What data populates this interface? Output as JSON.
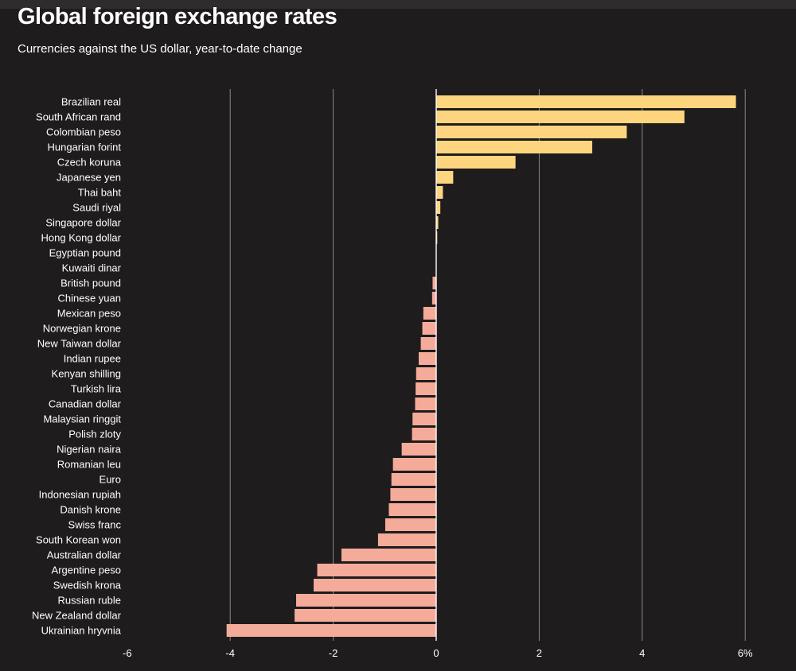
{
  "chart_data": {
    "type": "bar",
    "orientation": "horizontal",
    "title": "Global foreign exchange rates",
    "subtitle": "Currencies against the US dollar, year-to-date change",
    "xlabel": "",
    "ylabel": "",
    "xlim": [
      -6,
      6
    ],
    "ticks": [
      -6,
      -4,
      -2,
      0,
      2,
      4,
      6
    ],
    "tick_labels": [
      "-6",
      "-4",
      "-2",
      "0",
      "2",
      "4",
      "6%"
    ],
    "grid": true,
    "colors": {
      "positive": "#fdd57e",
      "negative": "#f5ab99"
    },
    "categories": [
      "Brazilian real",
      "South African rand",
      "Colombian peso",
      "Hungarian forint",
      "Czech koruna",
      "Japanese yen",
      "Thai baht",
      "Saudi riyal",
      "Singapore dollar",
      "Hong Kong dollar",
      "Egyptian pound",
      "Kuwaiti dinar",
      "British pound",
      "Chinese yuan",
      "Mexican peso",
      "Norwegian krone",
      "New Taiwan dollar",
      "Indian rupee",
      "Kenyan shilling",
      "Turkish lira",
      "Canadian dollar",
      "Malaysian ringgit",
      "Polish zloty",
      "Nigerian naira",
      "Romanian leu",
      "Euro",
      "Indonesian rupiah",
      "Danish krone",
      "Swiss franc",
      "South Korean won",
      "Australian dollar",
      "Argentine peso",
      "Swedish krona",
      "Russian ruble",
      "New Zealand dollar",
      "Ukrainian hryvnia"
    ],
    "values": [
      5.82,
      4.82,
      3.7,
      3.03,
      1.54,
      0.33,
      0.13,
      0.08,
      0.04,
      0.02,
      0.0,
      0.0,
      -0.07,
      -0.08,
      -0.25,
      -0.27,
      -0.3,
      -0.34,
      -0.39,
      -0.4,
      -0.41,
      -0.46,
      -0.47,
      -0.67,
      -0.84,
      -0.87,
      -0.89,
      -0.92,
      -0.99,
      -1.13,
      -1.84,
      -2.31,
      -2.38,
      -2.72,
      -2.75,
      -4.07
    ]
  }
}
